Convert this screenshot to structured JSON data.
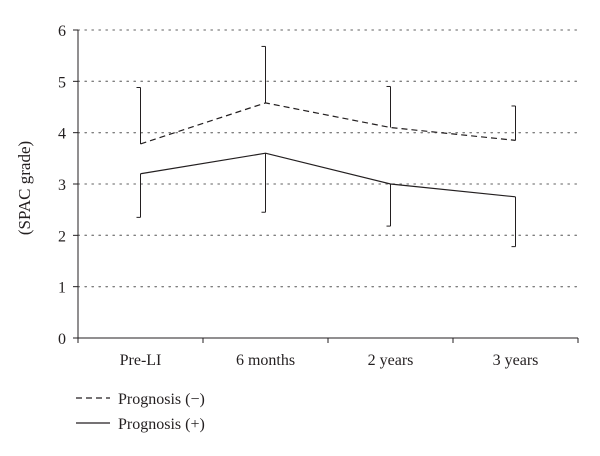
{
  "chart_data": {
    "type": "line",
    "title": "",
    "xlabel": "",
    "ylabel": "(SPAC grade)",
    "categories": [
      "Pre-LI",
      "6 months",
      "2 years",
      "3 years"
    ],
    "yticks": [
      "0",
      "1",
      "2",
      "3",
      "4",
      "5",
      "6"
    ],
    "ylim": [
      0,
      6
    ],
    "grid": "horizontal dotted",
    "legend_position": "bottom-left",
    "series": [
      {
        "name": "Prognosis (−)",
        "style": "dashed",
        "values": [
          3.78,
          4.58,
          4.1,
          3.85
        ],
        "error_upper": [
          4.88,
          5.68,
          4.9,
          4.52
        ],
        "error_direction": "up",
        "color": "#231f20"
      },
      {
        "name": "Prognosis (+)",
        "style": "solid",
        "values": [
          3.2,
          3.6,
          3.0,
          2.75
        ],
        "error_lower": [
          2.35,
          2.45,
          2.18,
          1.78
        ],
        "error_direction": "down",
        "color": "#231f20"
      }
    ]
  }
}
